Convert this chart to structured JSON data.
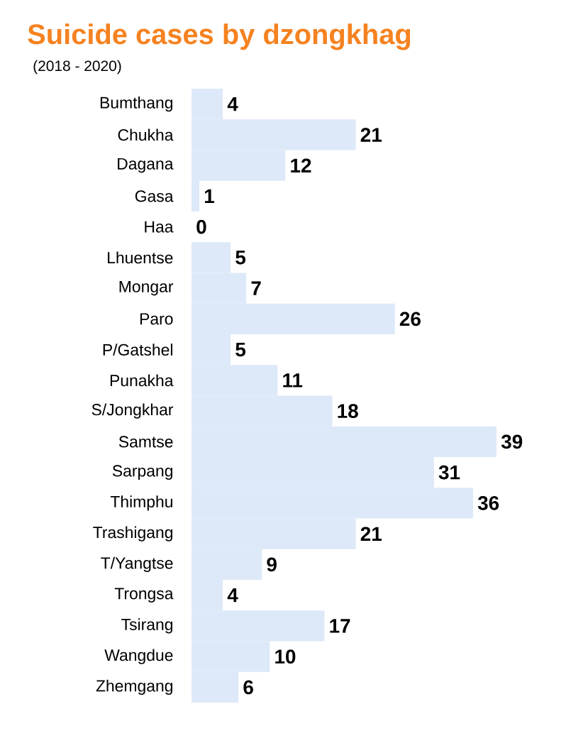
{
  "chart_data": {
    "type": "bar",
    "orientation": "horizontal",
    "title": "Suicide  cases by dzongkhag",
    "subtitle": "(2018 - 2020)",
    "categories": [
      "Bumthang",
      "Chukha",
      "Dagana",
      "Gasa",
      "Haa",
      "Lhuentse",
      "Mongar",
      "Paro",
      "P/Gatshel",
      "Punakha",
      "S/Jongkhar",
      "Samtse",
      "Sarpang",
      "Thimphu",
      "Trashigang",
      "T/Yangtse",
      "Trongsa",
      "Tsirang",
      "Wangdue",
      "Zhemgang"
    ],
    "values": [
      4,
      21,
      12,
      1,
      0,
      5,
      7,
      26,
      5,
      11,
      18,
      39,
      31,
      36,
      21,
      9,
      4,
      17,
      10,
      6
    ],
    "color": "#dde9f8",
    "data_labels": true
  }
}
